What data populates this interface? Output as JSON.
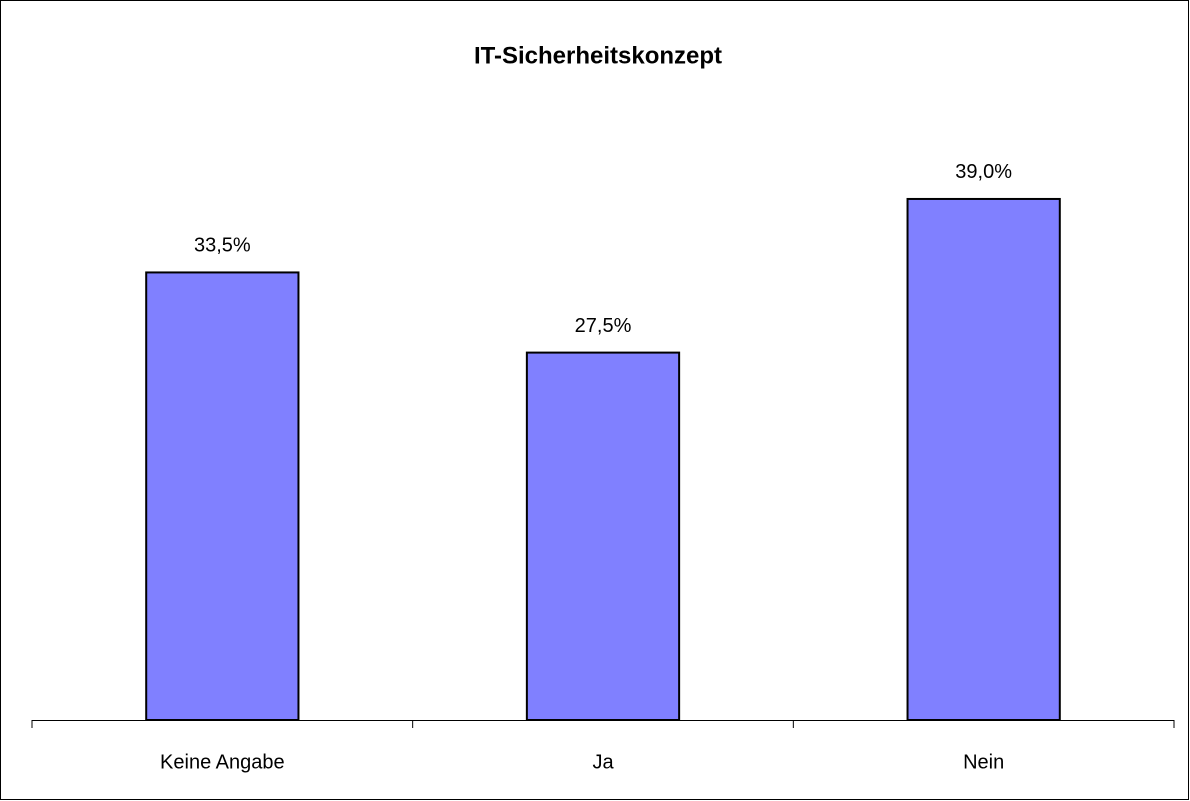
{
  "chart_data": {
    "type": "bar",
    "title": "IT-Sicherheitskonzept",
    "categories": [
      "Keine Angabe",
      "Ja",
      "Nein"
    ],
    "values": [
      33.5,
      27.5,
      39.0
    ],
    "value_labels": [
      "33,5%",
      "27,5%",
      "39,0%"
    ],
    "color": "#8080ff"
  }
}
